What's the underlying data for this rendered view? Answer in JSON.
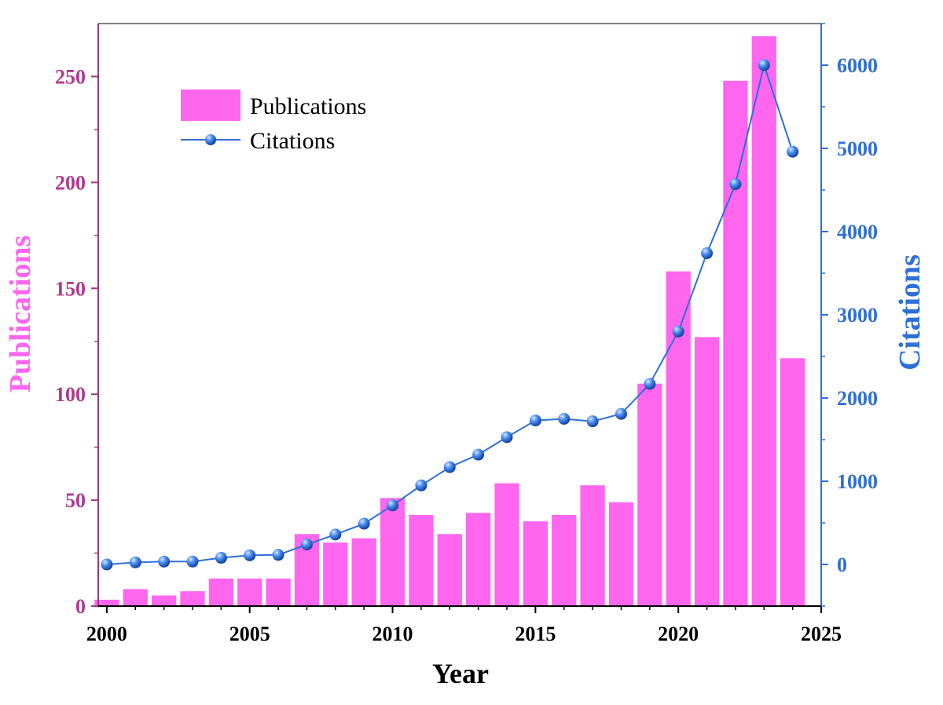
{
  "chart_data": {
    "type": "bar+line",
    "title": "",
    "xlabel": "Year",
    "ylabel_left": "Publications",
    "ylabel_right": "Citations",
    "xlim": [
      1999.7,
      2025
    ],
    "ylim_left": [
      0,
      275
    ],
    "ylim_right": [
      -500,
      6500
    ],
    "x_ticks": [
      2000,
      2005,
      2010,
      2015,
      2020,
      2025
    ],
    "y_left_ticks": [
      0,
      50,
      100,
      150,
      200,
      250
    ],
    "y_right_ticks": [
      0,
      1000,
      2000,
      3000,
      4000,
      5000,
      6000
    ],
    "grid": false,
    "legend": {
      "position": "top-left",
      "entries": [
        "Publications",
        "Citations"
      ]
    },
    "x": [
      2000,
      2001,
      2002,
      2003,
      2004,
      2005,
      2006,
      2007,
      2008,
      2009,
      2010,
      2011,
      2012,
      2013,
      2014,
      2015,
      2016,
      2017,
      2018,
      2019,
      2020,
      2021,
      2022,
      2023,
      2024
    ],
    "series": [
      {
        "name": "Publications",
        "type": "bar",
        "axis": "left",
        "color": "#ff66ee",
        "values": [
          3,
          8,
          5,
          7,
          13,
          13,
          13,
          34,
          30,
          32,
          51,
          43,
          34,
          44,
          58,
          40,
          43,
          57,
          49,
          105,
          158,
          127,
          248,
          269,
          117
        ]
      },
      {
        "name": "Citations",
        "type": "line",
        "axis": "right",
        "color": "#2f6fd6",
        "values": [
          0,
          25,
          35,
          35,
          80,
          110,
          115,
          240,
          360,
          490,
          710,
          950,
          1170,
          1320,
          1530,
          1730,
          1750,
          1720,
          1810,
          2170,
          2800,
          3740,
          4570,
          6000,
          4960
        ]
      }
    ]
  }
}
